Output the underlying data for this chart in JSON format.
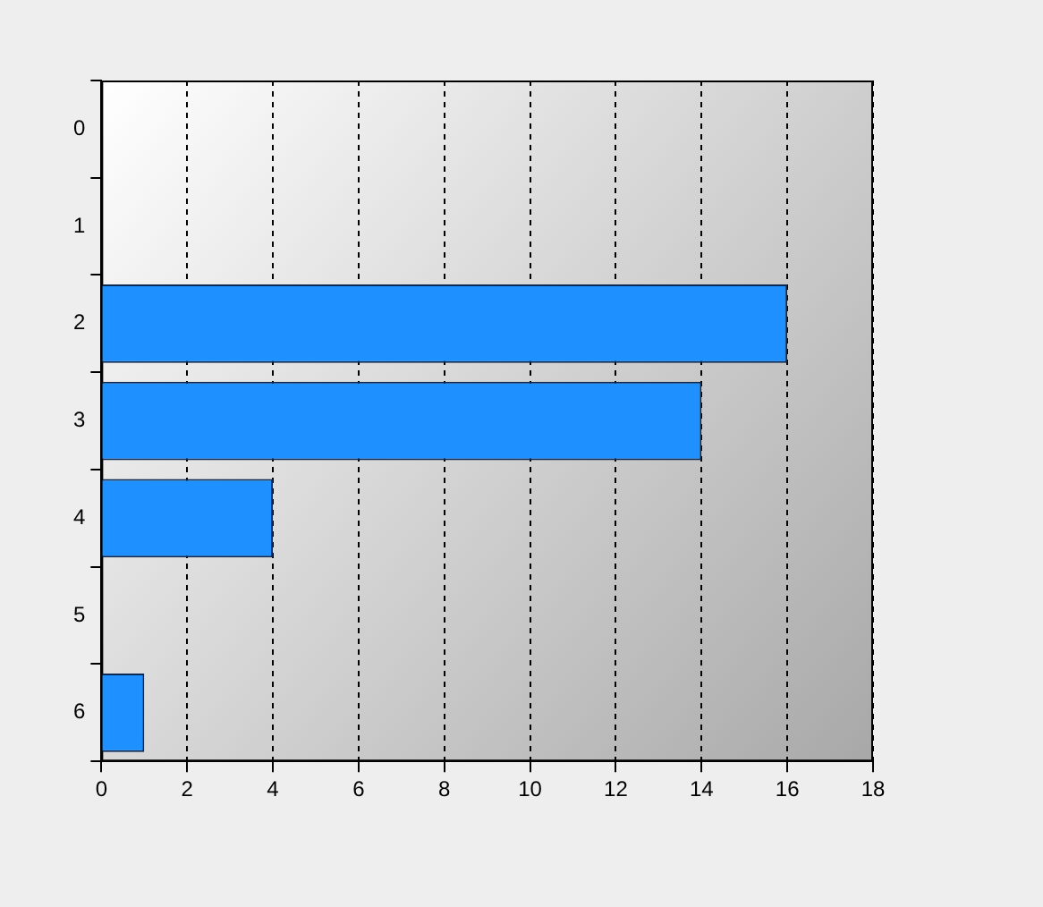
{
  "chart_data": {
    "type": "bar",
    "orientation": "horizontal",
    "categories": [
      "0",
      "1",
      "2",
      "3",
      "4",
      "5",
      "6"
    ],
    "values": [
      0,
      0,
      16,
      14,
      4,
      0,
      1
    ],
    "color": "#1e90ff",
    "xlim": [
      0,
      18
    ],
    "xticks": [
      0,
      2,
      4,
      6,
      8,
      10,
      12,
      14,
      16,
      18
    ],
    "grid": "x"
  }
}
